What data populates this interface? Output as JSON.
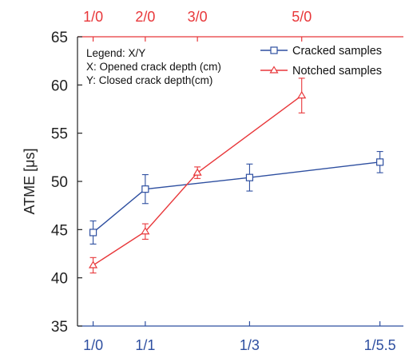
{
  "chart_data": {
    "type": "line",
    "ylabel": "ATME [μs]",
    "ylim": [
      35,
      65
    ],
    "yticks": [
      "35",
      "40",
      "45",
      "50",
      "55",
      "60",
      "65"
    ],
    "x_bottom_ticks": [
      {
        "label": "1/0",
        "x": 1
      },
      {
        "label": "1/1",
        "x": 2
      },
      {
        "label": "1/3",
        "x": 4
      },
      {
        "label": "1/5.5",
        "x": 6.5
      }
    ],
    "x_top_ticks": [
      {
        "label": "1/0",
        "x": 1
      },
      {
        "label": "2/0",
        "x": 2
      },
      {
        "label": "3/0",
        "x": 3
      },
      {
        "label": "5/0",
        "x": 5
      }
    ],
    "xlim": [
      0.7,
      6.95
    ],
    "annotation_lines": [
      "Legend: X/Y",
      "X: Opened crack depth (cm)",
      "Y: Closed crack depth(cm)"
    ],
    "legend_position": "top-right",
    "series": [
      {
        "name": "Cracked samples",
        "color": "#2e4fa0",
        "marker": "square",
        "points": [
          {
            "x": 1,
            "y": 44.7,
            "err": 1.2
          },
          {
            "x": 2,
            "y": 49.2,
            "err": 1.5
          },
          {
            "x": 4,
            "y": 50.4,
            "err": 1.4
          },
          {
            "x": 6.5,
            "y": 52.0,
            "err": 1.1
          }
        ]
      },
      {
        "name": "Notched samples",
        "color": "#e8373a",
        "marker": "triangle",
        "points": [
          {
            "x": 1,
            "y": 41.3,
            "err": 0.8
          },
          {
            "x": 2,
            "y": 44.8,
            "err": 0.8
          },
          {
            "x": 3,
            "y": 50.9,
            "err": 0.6
          },
          {
            "x": 5,
            "y": 58.9,
            "err": 1.8
          }
        ]
      }
    ]
  }
}
